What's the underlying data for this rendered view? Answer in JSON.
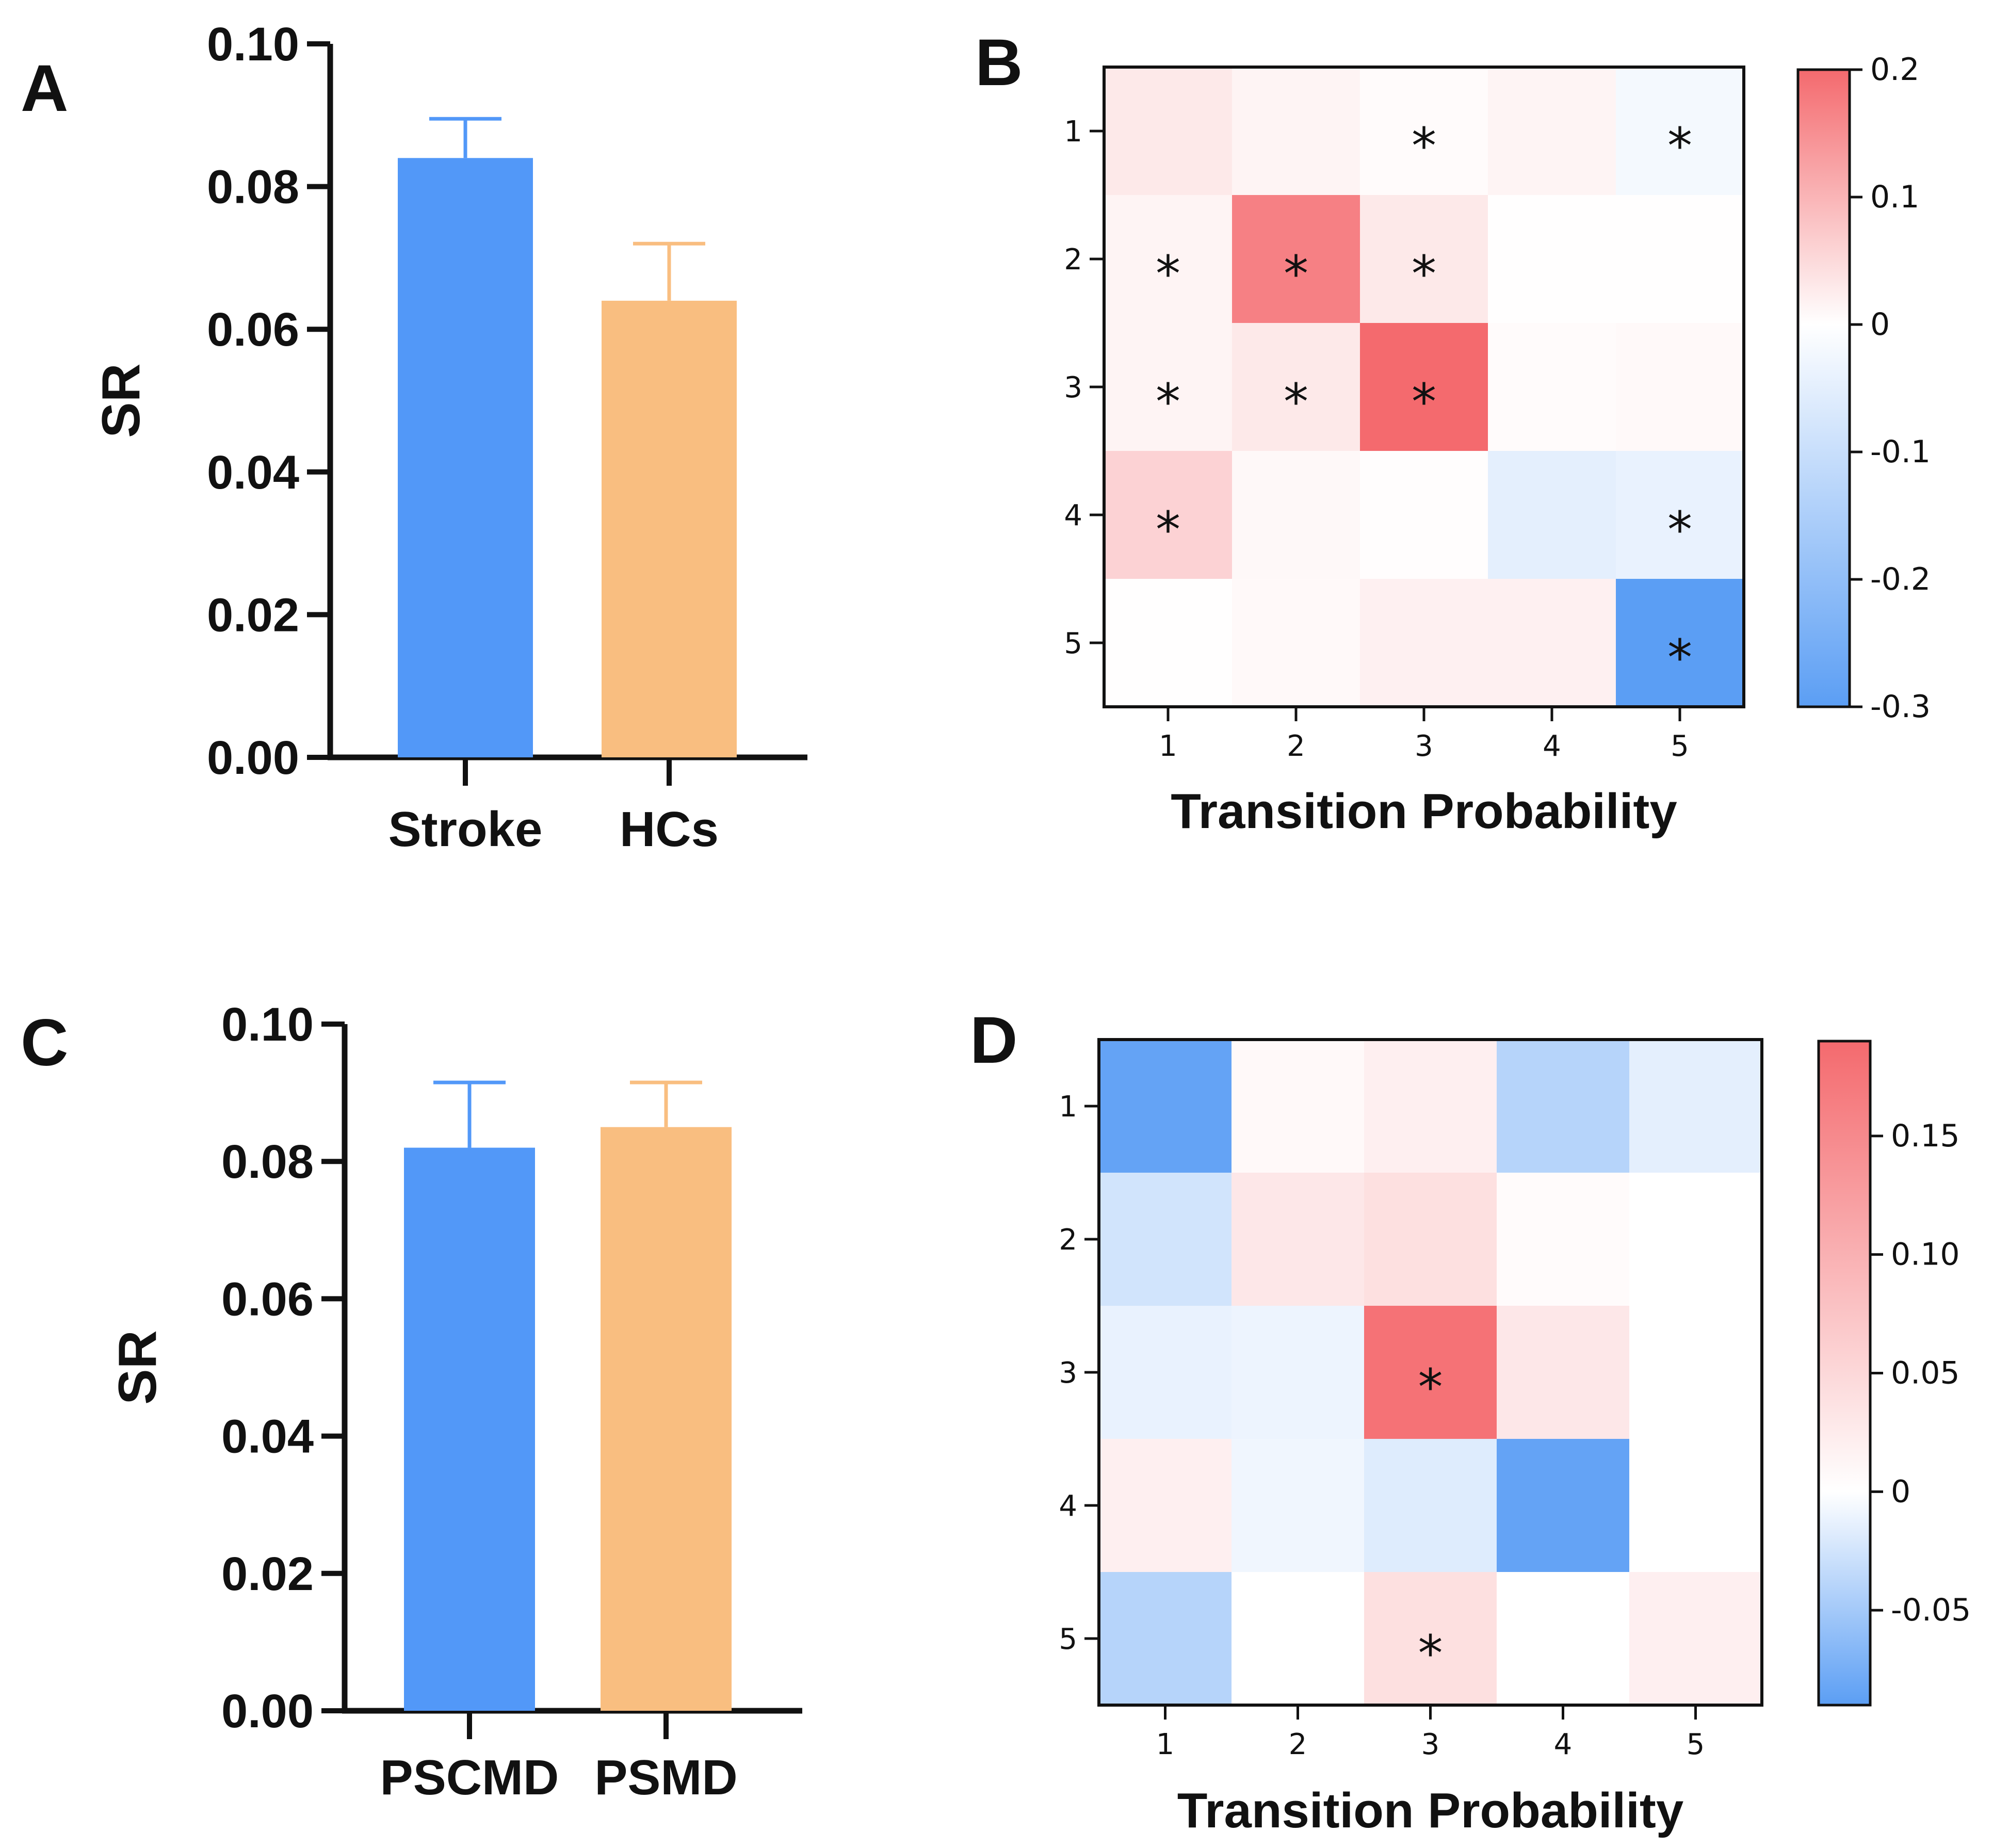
{
  "chart_data": [
    {
      "panel": "A",
      "type": "bar",
      "title": "",
      "xlabel": "",
      "ylabel": "SR",
      "categories": [
        "Stroke",
        "HCs"
      ],
      "values": [
        0.084,
        0.064
      ],
      "error_upper": [
        0.0895,
        0.072
      ],
      "colors": [
        "#5298f8",
        "#f9be80"
      ],
      "ylim": [
        0,
        0.1
      ],
      "yticks": [
        "0.00",
        "0.02",
        "0.04",
        "0.06",
        "0.08",
        "0.10"
      ]
    },
    {
      "panel": "B",
      "type": "heatmap",
      "xlabel": "Transition Probability",
      "row_labels": [
        "1",
        "2",
        "3",
        "4",
        "5"
      ],
      "col_labels": [
        "1",
        "2",
        "3",
        "4",
        "5"
      ],
      "values": [
        [
          0.03,
          0.015,
          0.005,
          0.015,
          -0.02
        ],
        [
          0.015,
          0.17,
          0.03,
          0.002,
          0.002
        ],
        [
          0.015,
          0.03,
          0.2,
          0.005,
          0.008
        ],
        [
          0.06,
          0.01,
          0.003,
          -0.05,
          -0.04
        ],
        [
          0.002,
          0.008,
          0.02,
          0.02,
          -0.3
        ]
      ],
      "significant": [
        [
          false,
          false,
          true,
          false,
          true
        ],
        [
          true,
          true,
          true,
          false,
          false
        ],
        [
          true,
          true,
          true,
          false,
          false
        ],
        [
          true,
          false,
          false,
          false,
          true
        ],
        [
          false,
          false,
          false,
          false,
          true
        ]
      ],
      "colorbar": {
        "min": -0.3,
        "max": 0.2,
        "ticks": [
          0.2,
          0.1,
          0,
          -0.1,
          -0.2,
          -0.3
        ],
        "tick_labels": [
          "0.2",
          "0.1",
          "0",
          "-0.1",
          "-0.2",
          "-0.3"
        ]
      }
    },
    {
      "panel": "C",
      "type": "bar",
      "title": "",
      "xlabel": "",
      "ylabel": "SR",
      "categories": [
        "PSCMD",
        "PSMD"
      ],
      "values": [
        0.082,
        0.085
      ],
      "error_upper": [
        0.0915,
        0.0915
      ],
      "colors": [
        "#5298f8",
        "#f9be80"
      ],
      "ylim": [
        0,
        0.1
      ],
      "yticks": [
        "0.00",
        "0.02",
        "0.04",
        "0.06",
        "0.08",
        "0.10"
      ]
    },
    {
      "panel": "D",
      "type": "heatmap",
      "xlabel": "Transition Probability",
      "row_labels": [
        "1",
        "2",
        "3",
        "4",
        "5"
      ],
      "col_labels": [
        "1",
        "2",
        "3",
        "4",
        "5"
      ],
      "values": [
        [
          -0.085,
          0.008,
          0.02,
          -0.04,
          -0.015
        ],
        [
          -0.025,
          0.03,
          0.04,
          0.005,
          0.0
        ],
        [
          -0.012,
          -0.01,
          0.18,
          0.03,
          0.0
        ],
        [
          0.02,
          -0.008,
          -0.018,
          -0.085,
          0.0
        ],
        [
          -0.04,
          0.0,
          0.04,
          0.0,
          0.02
        ]
      ],
      "significant": [
        [
          false,
          false,
          false,
          false,
          false
        ],
        [
          false,
          false,
          false,
          false,
          false
        ],
        [
          false,
          false,
          true,
          false,
          false
        ],
        [
          false,
          false,
          false,
          false,
          false
        ],
        [
          false,
          false,
          true,
          false,
          false
        ]
      ],
      "colorbar": {
        "min": -0.09,
        "max": 0.19,
        "ticks": [
          0.15,
          0.1,
          0.05,
          0,
          -0.05
        ],
        "tick_labels": [
          "0.15",
          "0.10",
          "0.05",
          "0",
          "-0.05"
        ]
      }
    }
  ],
  "panel_labels": [
    "A",
    "B",
    "C",
    "D"
  ],
  "significance_marker": "*",
  "colors": {
    "blue": "#5298f8",
    "orange": "#f9be80",
    "axis": "#111111",
    "hm_neg": "#5b9ef4",
    "hm_pos": "#f46a6e"
  }
}
